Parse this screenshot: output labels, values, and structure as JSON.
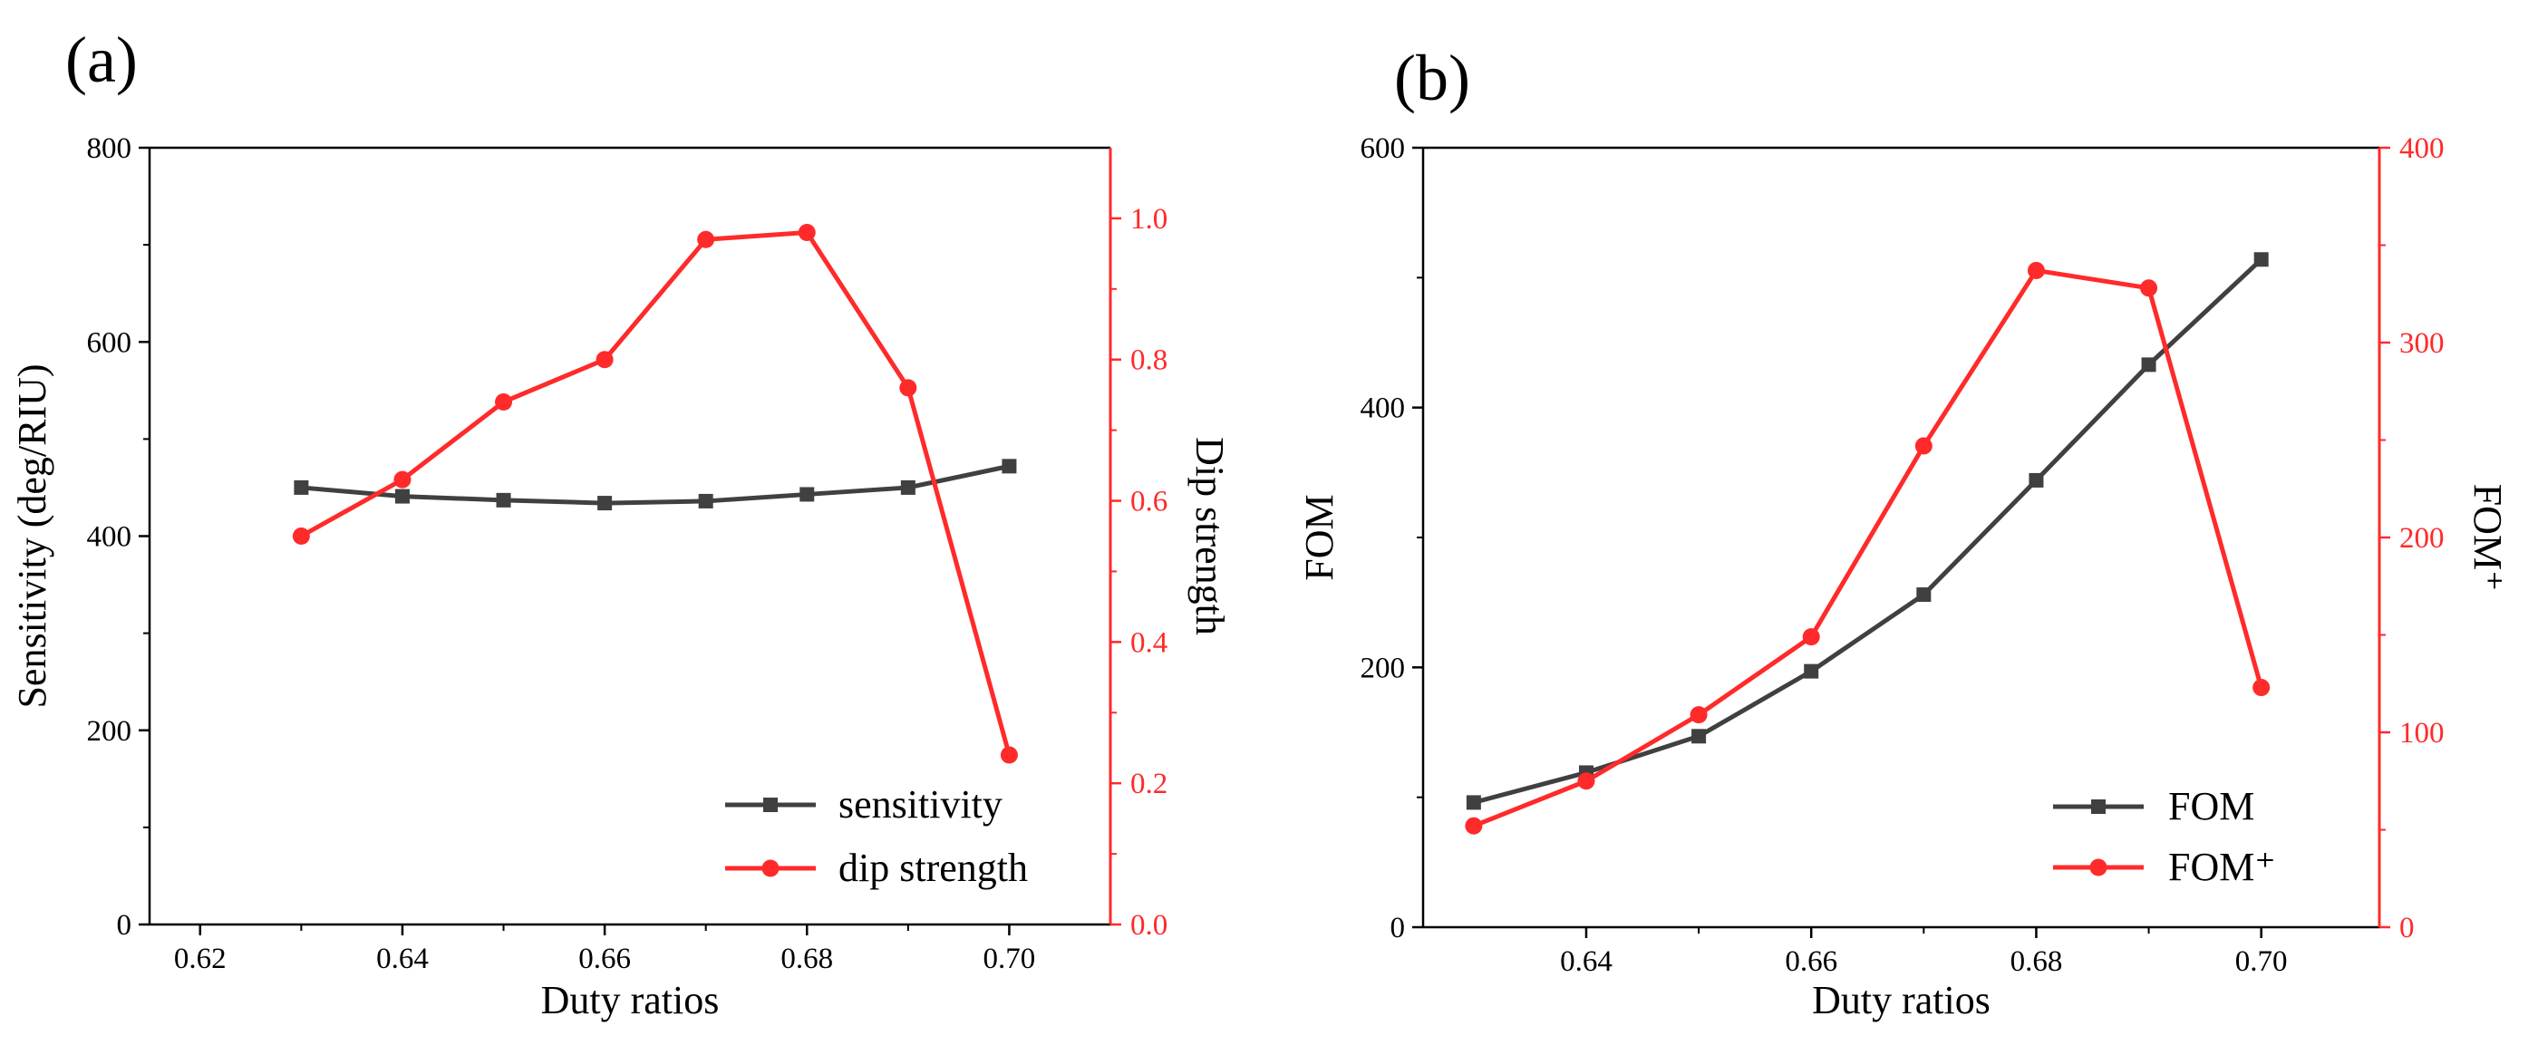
{
  "chart_data": [
    {
      "panel": "(a)",
      "type": "line",
      "x": [
        0.63,
        0.64,
        0.65,
        0.66,
        0.67,
        0.68,
        0.69,
        0.7
      ],
      "xlabel": "Duty ratios",
      "xlim": [
        0.615,
        0.71
      ],
      "xticks": [
        "0.62",
        "0.64",
        "0.66",
        "0.68",
        "0.70"
      ],
      "ylabel_left": "Sensitivity (deg/RIU)",
      "ylim_left": [
        0,
        800
      ],
      "yticks_left": [
        "0",
        "200",
        "400",
        "600",
        "800"
      ],
      "ylabel_right": "Dip strength",
      "ylim_right": [
        0,
        1.1
      ],
      "yticks_right": [
        "0.0",
        "0.2",
        "0.4",
        "0.6",
        "0.8",
        "1.0"
      ],
      "series": [
        {
          "name": "sensitivity",
          "axis": "left",
          "color": "#404040",
          "marker": "square",
          "values": [
            450,
            441,
            437,
            434,
            436,
            443,
            450,
            472
          ]
        },
        {
          "name": "dip strength",
          "axis": "right",
          "color": "#ff2a2a",
          "marker": "circle",
          "values": [
            0.55,
            0.63,
            0.74,
            0.8,
            0.97,
            0.98,
            0.76,
            0.24
          ]
        }
      ],
      "legend": "bottom-right"
    },
    {
      "panel": "(b)",
      "type": "line",
      "x": [
        0.63,
        0.64,
        0.65,
        0.66,
        0.67,
        0.68,
        0.69,
        0.7
      ],
      "xlabel": "Duty ratios",
      "xlim": [
        0.6255,
        0.7105
      ],
      "xticks": [
        "0.64",
        "0.66",
        "0.68",
        "0.70"
      ],
      "ylabel_left": "FOM",
      "ylim_left": [
        0,
        600
      ],
      "yticks_left": [
        "0",
        "200",
        "400",
        "600"
      ],
      "ylabel_right": "FOM⁺",
      "ylim_right": [
        0,
        400
      ],
      "yticks_right": [
        "0",
        "100",
        "200",
        "300",
        "400"
      ],
      "series": [
        {
          "name": "FOM",
          "axis": "left",
          "color": "#404040",
          "marker": "square",
          "values": [
            96,
            119,
            147,
            197,
            256,
            344,
            433,
            514
          ]
        },
        {
          "name": "FOM⁺",
          "axis": "right",
          "color": "#ff2a2a",
          "marker": "circle",
          "values": [
            52,
            75,
            109,
            149,
            247,
            337,
            328,
            123
          ]
        }
      ],
      "legend": "bottom-right"
    }
  ]
}
